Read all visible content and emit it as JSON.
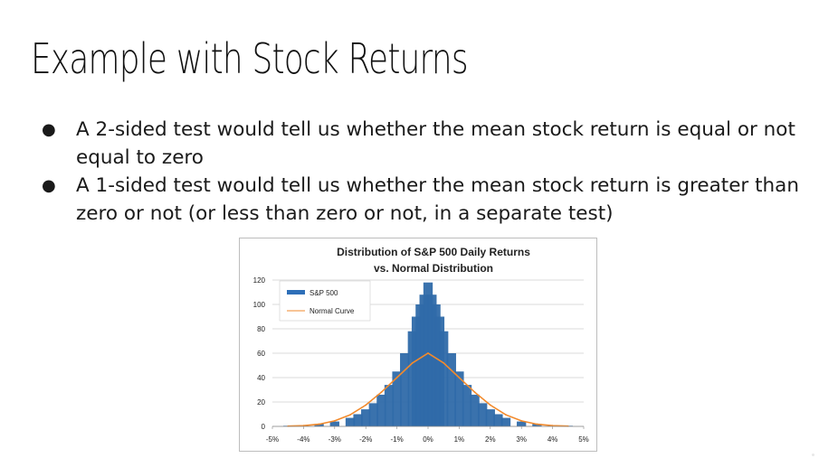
{
  "slide": {
    "title": "Example with Stock Returns",
    "bullets": [
      {
        "marker": "●",
        "text": "A 2-sided test would tell us whether the mean stock return is equal or not equal to zero"
      },
      {
        "marker": "●",
        "text": "A 1-sided test would tell us whether the mean stock return is greater than zero or not (or less than zero or not, in a separate test)"
      }
    ]
  },
  "chart_data": {
    "type": "bar",
    "title_line1": "Distribution of S&P 500 Daily Returns",
    "title_line2": "vs. Normal Distribution",
    "xlabel": "",
    "ylabel": "",
    "x_ticks": [
      "-5%",
      "-4%",
      "-3%",
      "-2%",
      "-1%",
      "0%",
      "1%",
      "2%",
      "3%",
      "4%",
      "5%"
    ],
    "y_ticks": [
      "120",
      "100",
      "80",
      "60",
      "40",
      "20",
      "0"
    ],
    "xlim": [
      -5,
      5
    ],
    "ylim": [
      0,
      120
    ],
    "grid": true,
    "legend_position": "top-left",
    "colors": {
      "sp500": "#2e6fb8",
      "sp500_fill": "#2f6aa9",
      "normal": "#f28a2c"
    },
    "series": [
      {
        "name": "S&P 500",
        "kind": "histogram",
        "x": [
          -4.5,
          -4.0,
          -3.5,
          -3.0,
          -2.5,
          -2.25,
          -2.0,
          -1.75,
          -1.5,
          -1.25,
          -1.0,
          -0.75,
          -0.5,
          -0.375,
          -0.25,
          -0.125,
          0.0,
          0.125,
          0.25,
          0.375,
          0.5,
          0.75,
          1.0,
          1.25,
          1.5,
          1.75,
          2.0,
          2.25,
          2.5,
          3.0,
          3.5,
          4.0,
          4.5
        ],
        "values": [
          0.5,
          1,
          2,
          4,
          7,
          10,
          14,
          19,
          26,
          34,
          45,
          60,
          78,
          90,
          100,
          108,
          118,
          108,
          100,
          90,
          78,
          60,
          45,
          34,
          26,
          19,
          14,
          10,
          7,
          4,
          2,
          1,
          0.5
        ]
      },
      {
        "name": "Normal Curve",
        "kind": "line",
        "x": [
          -4.5,
          -4.0,
          -3.5,
          -3.0,
          -2.5,
          -2.0,
          -1.5,
          -1.0,
          -0.5,
          0.0,
          0.5,
          1.0,
          1.5,
          2.0,
          2.5,
          3.0,
          3.5,
          4.0,
          4.5
        ],
        "values": [
          0.2,
          0.6,
          1.8,
          4.5,
          9.5,
          17.5,
          28,
          40,
          52,
          60,
          52,
          40,
          28,
          17.5,
          9.5,
          4.5,
          1.8,
          0.6,
          0.2
        ]
      }
    ]
  }
}
